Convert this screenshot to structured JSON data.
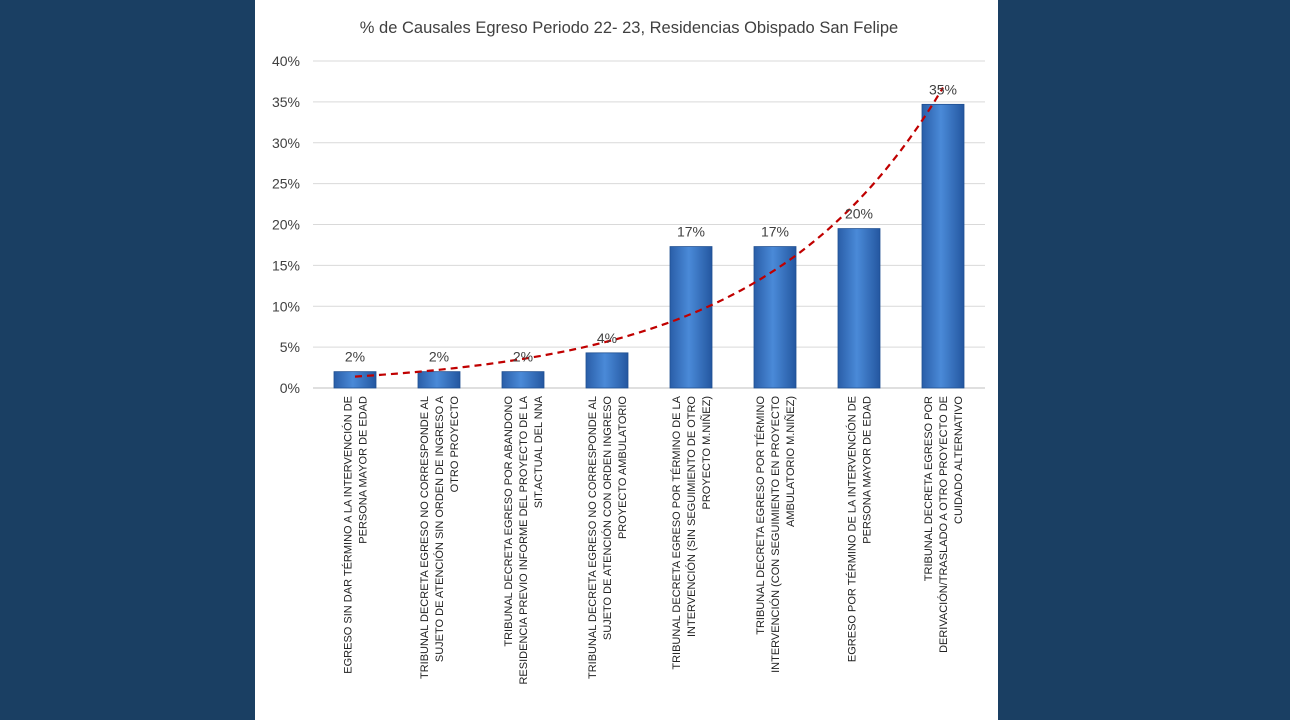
{
  "chart_data": {
    "type": "bar",
    "title": "% de Causales Egreso Periodo 22- 23, Residencias Obispado San Felipe",
    "xlabel": "",
    "ylabel": "",
    "ylim": [
      0,
      0.4
    ],
    "y_ticks": [
      "0%",
      "5%",
      "10%",
      "15%",
      "20%",
      "25%",
      "30%",
      "35%",
      "40%"
    ],
    "grid": true,
    "legend": "none",
    "trendline": "exponential",
    "categories": [
      [
        "EGRESO SIN DAR TÉRMINO A LA INTERVENCIÓN DE",
        "PERSONA MAYOR DE EDAD"
      ],
      [
        "TRIBUNAL DECRETA EGRESO NO CORRESPONDE AL",
        "SUJETO DE ATENCIÓN  SIN ORDEN DE INGRESO A",
        "OTRO PROYECTO"
      ],
      [
        "TRIBUNAL DECRETA EGRESO POR ABANDONO",
        "RESIDENCIA PREVIO INFORME DEL PROYECTO DE LA",
        "SIT.ACTUAL DEL NNA"
      ],
      [
        "TRIBUNAL DECRETA EGRESO NO CORRESPONDE AL",
        "SUJETO DE ATENCIÓN  CON ORDEN INGRESO",
        "PROYECTO AMBULATORIO"
      ],
      [
        "TRIBUNAL DECRETA EGRESO POR TÉRMINO DE LA",
        "INTERVENCIÓN (SIN SEGUIMIENTO DE OTRO",
        "PROYECTO M.NIÑEZ)"
      ],
      [
        "TRIBUNAL DECRETA EGRESO POR TÉRMINO",
        "INTERVENCIÓN (CON SEGUIMIENTO EN PROYECTO",
        "AMBULATORIO M.NIÑEZ)"
      ],
      [
        "EGRESO POR TÉRMINO DE LA INTERVENCIÓN DE",
        "PERSONA MAYOR DE EDAD"
      ],
      [
        "TRIBUNAL DECRETA EGRESO POR",
        "DERIVACIÓN/TRASLADO A OTRO PROYECTO DE",
        "CUIDADO ALTERNATIVO"
      ]
    ],
    "values": [
      0.02,
      0.02,
      0.02,
      0.043,
      0.173,
      0.173,
      0.195,
      0.347
    ],
    "data_labels": [
      "2%",
      "2%",
      "2%",
      "4%",
      "17%",
      "17%",
      "20%",
      "35%"
    ],
    "colors": {
      "bar": "#3c78c8",
      "bar_dark": "#1f4f91",
      "trend": "#c00000",
      "grid": "#d9d9d9",
      "panel": "#ffffff",
      "background": "#1a3f63"
    }
  }
}
